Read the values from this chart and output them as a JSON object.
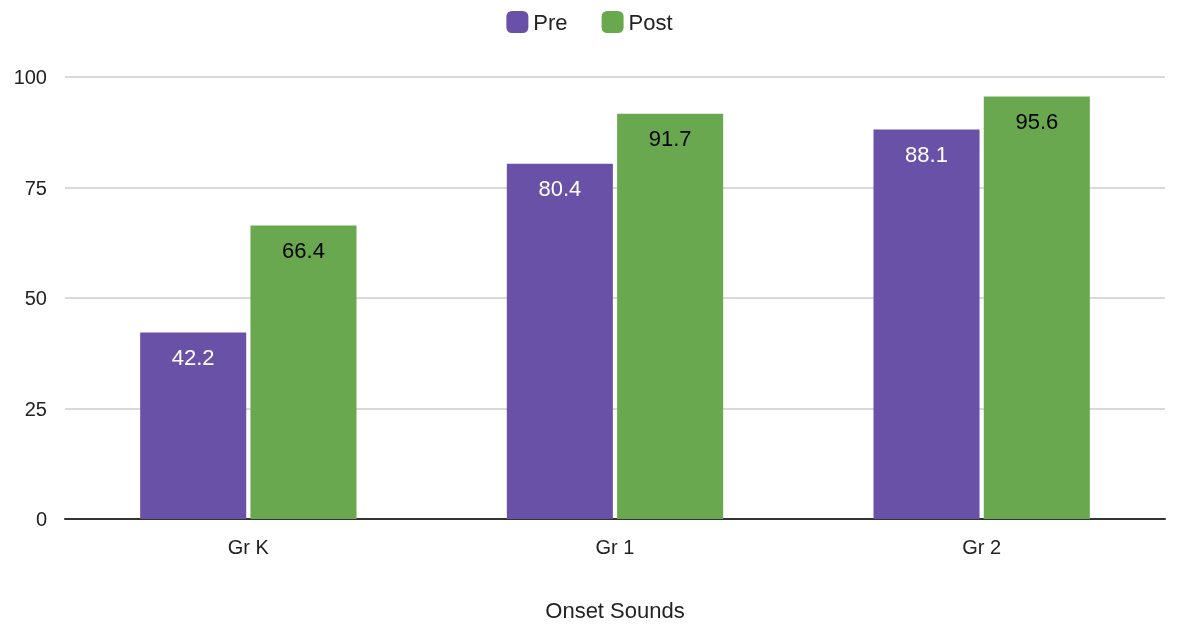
{
  "chart_data": {
    "type": "bar",
    "xlabel": "Onset Sounds",
    "categories": [
      "Gr K",
      "Gr 1",
      "Gr 2"
    ],
    "series": [
      {
        "name": "Pre",
        "color": "#6a51a8",
        "values": [
          42.2,
          80.4,
          88.1
        ]
      },
      {
        "name": "Post",
        "color": "#6aa84f",
        "values": [
          66.4,
          91.7,
          95.6
        ]
      }
    ],
    "ylim": [
      0,
      100
    ],
    "yticks": [
      0,
      25,
      50,
      75,
      100
    ],
    "grid": "y",
    "legend": "top",
    "data_labels": true
  }
}
